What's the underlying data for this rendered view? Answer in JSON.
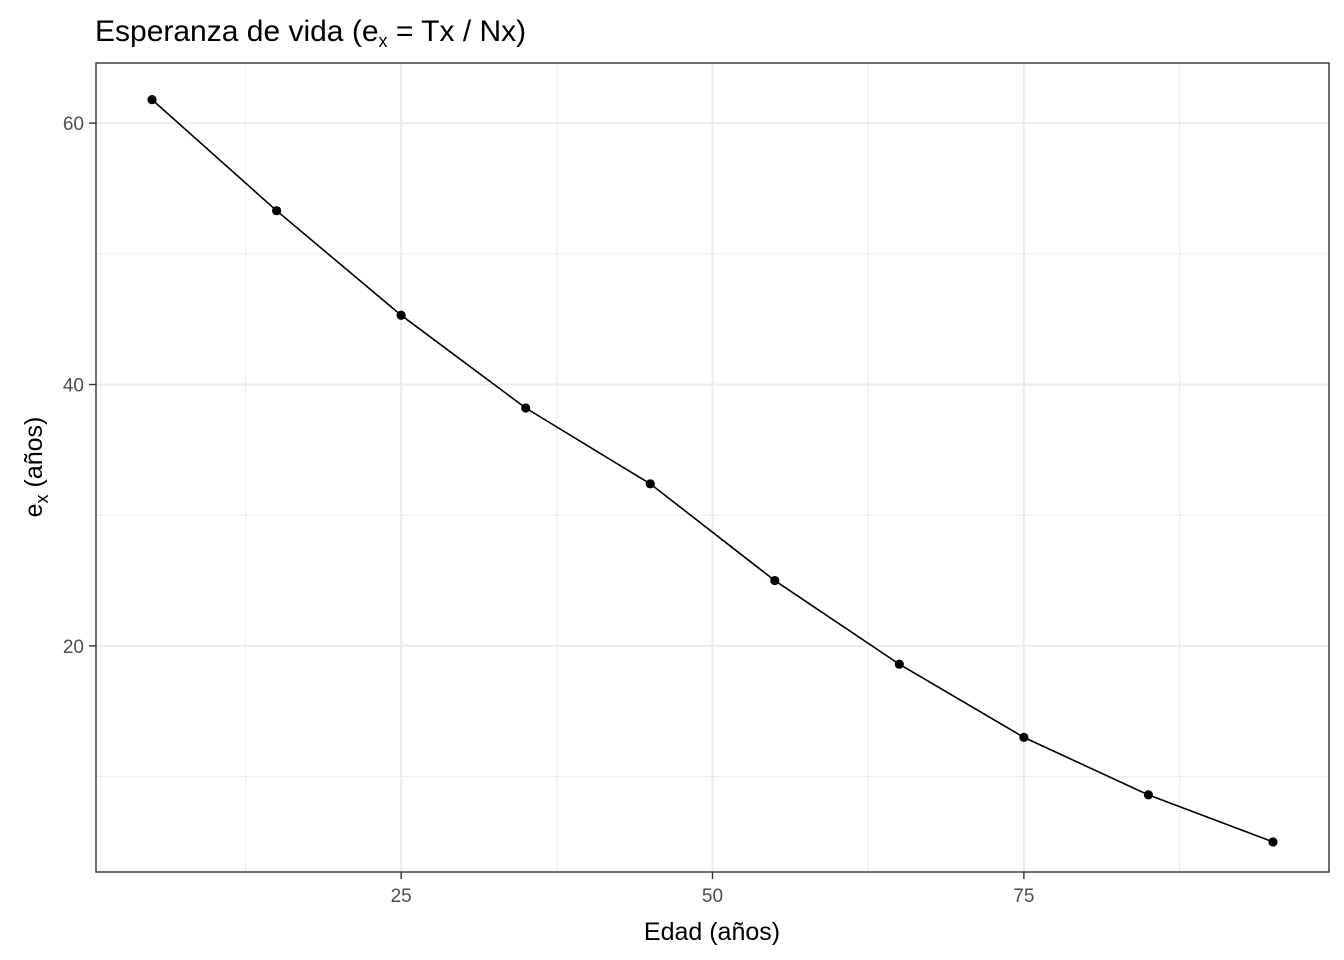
{
  "chart_data": {
    "type": "line",
    "title_main": "Esperanza de vida (e",
    "title_sub": "x",
    "title_rest": " = Tx / Nx)",
    "xlabel": "Edad (años)",
    "ylabel_main": "e",
    "ylabel_sub": "x",
    "ylabel_rest": " (años)",
    "x": [
      5,
      15,
      25,
      35,
      45,
      55,
      65,
      75,
      85,
      95
    ],
    "y": [
      61.8,
      53.3,
      45.3,
      38.2,
      32.4,
      25.0,
      18.6,
      13.0,
      8.6,
      5.0
    ],
    "xlim": [
      0.5,
      99.5
    ],
    "ylim": [
      2.7,
      64.6
    ],
    "x_major_ticks": [
      25,
      50,
      75
    ],
    "x_tick_labels": [
      "25",
      "50",
      "75"
    ],
    "x_minor_ticks": [
      12.5,
      37.5,
      62.5,
      87.5
    ],
    "y_major_ticks": [
      20,
      40,
      60
    ],
    "y_tick_labels": [
      "20",
      "40",
      "60"
    ],
    "y_minor_ticks": [
      10,
      30,
      50
    ],
    "grid": true,
    "legend": "none",
    "colors": {
      "line": "#000000",
      "point": "#000000",
      "grid": "#ebebeb",
      "panel_border": "#333333",
      "tick_text": "#4d4d4d"
    }
  }
}
